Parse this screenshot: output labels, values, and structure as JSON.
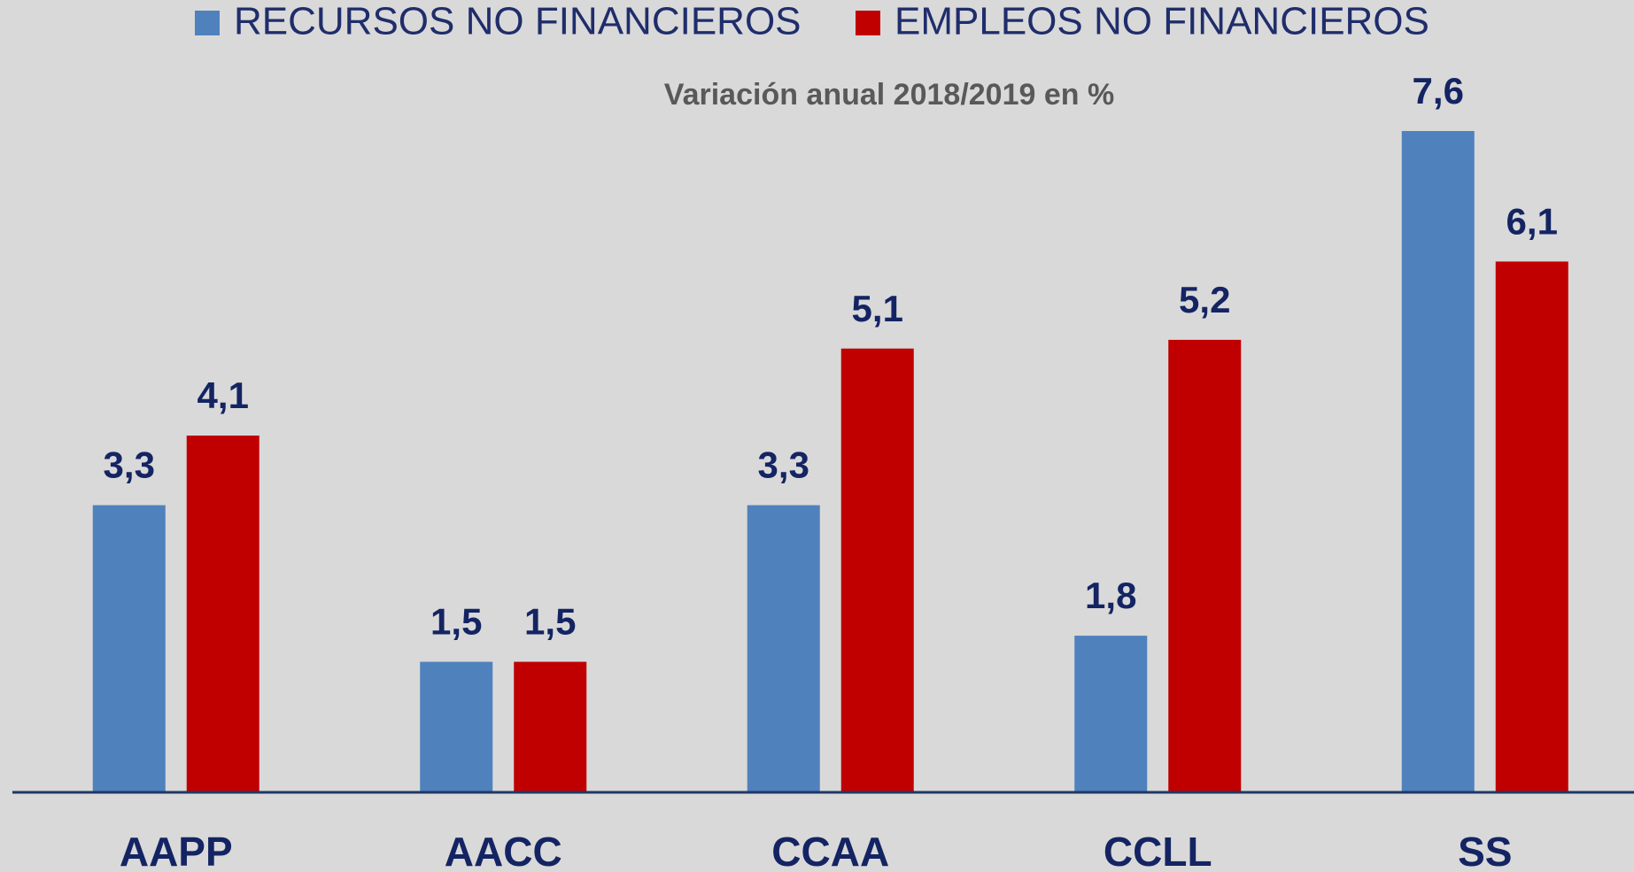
{
  "chart_data": {
    "type": "bar",
    "title": "Variación anual 2018/2019 en %",
    "categories": [
      "AAPP",
      "AACC",
      "CCAA",
      "CCLL",
      "SS"
    ],
    "series": [
      {
        "name": "RECURSOS NO FINANCIEROS",
        "color": "#4f81bd",
        "values": [
          3.3,
          1.5,
          3.3,
          1.8,
          7.6
        ],
        "value_labels": [
          "3,3",
          "1,5",
          "3,3",
          "1,8",
          "7,6"
        ]
      },
      {
        "name": "EMPLEOS NO FINANCIEROS",
        "color": "#c00000",
        "values": [
          4.1,
          1.5,
          5.1,
          5.2,
          6.1
        ],
        "value_labels": [
          "4,1",
          "1,5",
          "5,1",
          "5,2",
          "6,1"
        ]
      }
    ],
    "legend": "top"
  }
}
